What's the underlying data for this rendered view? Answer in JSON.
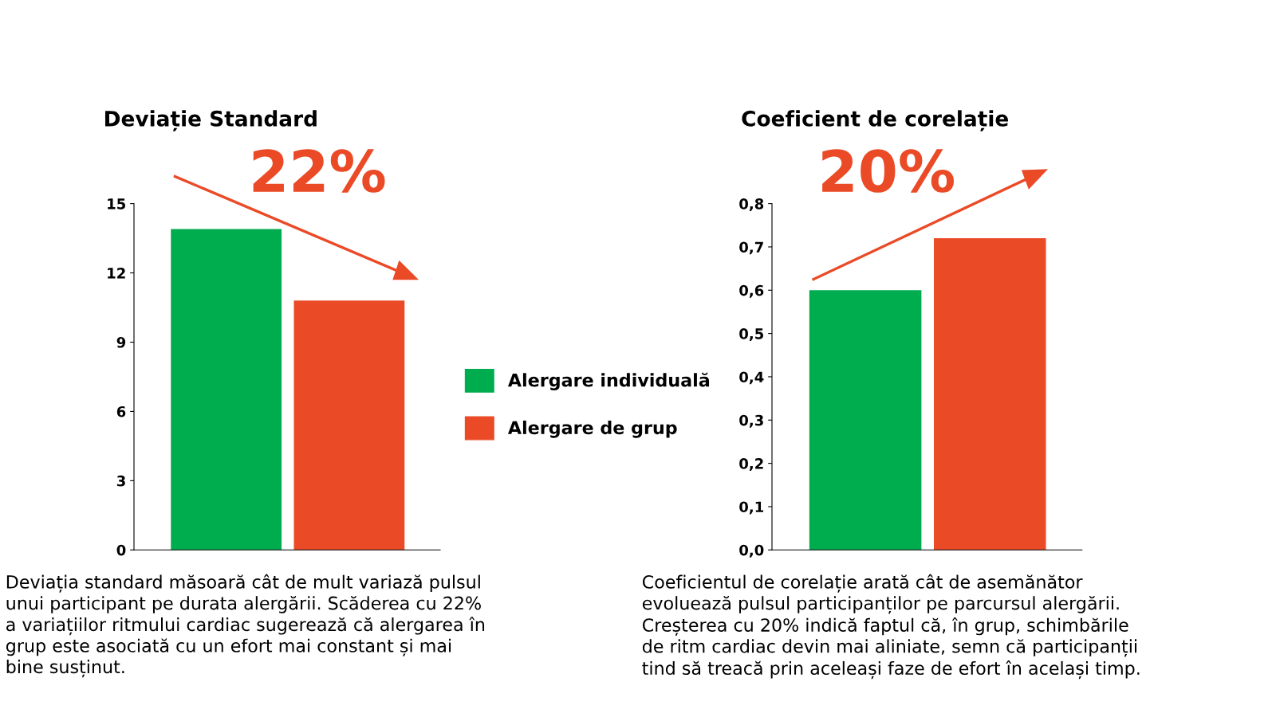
{
  "chart_data": [
    {
      "type": "bar",
      "title": "Deviație Standard",
      "categories": [
        null,
        null
      ],
      "series": [
        {
          "name": "Alergare individuală",
          "color": "#00ad4e",
          "values": [
            13.9,
            null
          ]
        },
        {
          "name": "Alergare de grup",
          "color": "#eb4a27",
          "values": [
            null,
            10.8
          ]
        }
      ],
      "ylim": [
        0,
        15
      ],
      "yticks": [
        0,
        3,
        6,
        9,
        12,
        15
      ],
      "grid": false,
      "legend": "right",
      "annotations": [
        "22%",
        "Deviația standard măsoară cât de mult variază pulsul\nunui participant pe durata alergării. Scăderea cu 22%\na variațiilor ritmului cardiac sugerează că alergarea în\ngrup este asociată cu un efort mai constant și mai\nbine susținut."
      ]
    },
    {
      "type": "bar",
      "title": "Coeficient de corelație",
      "categories": [
        null,
        null
      ],
      "series": [
        {
          "color": "#00ad4e",
          "values": [
            0.6,
            null
          ]
        },
        {
          "color": "#eb4a27",
          "values": [
            null,
            0.72
          ]
        }
      ],
      "ylim": [
        0,
        0.8
      ],
      "yticks": [
        {
          "value": 0,
          "label": "0,0"
        },
        {
          "value": 0.1,
          "label": "0,1"
        },
        {
          "value": 0.2,
          "label": "0,2"
        },
        {
          "value": 0.3,
          "label": "0,3"
        },
        {
          "value": 0.4,
          "label": "0,4"
        },
        {
          "value": 0.5,
          "label": "0,5"
        },
        {
          "value": 0.6,
          "label": "0,6"
        },
        {
          "value": 0.7,
          "label": "0,7"
        },
        {
          "value": 0.8,
          "label": "0,8"
        }
      ],
      "grid": false,
      "legend": false,
      "annotations": [
        "20%",
        "Coeficientul de corelație arată cât de asemănător\nevoluează pulsul participanților pe parcursul alergării.\nCreșterea cu 20% indică faptul că, în grup, schimbările\nde ritm cardiac devin mai aliniate, semn că participanții\ntind să treacă prin aceleași faze de efort în același timp."
      ]
    }
  ]
}
